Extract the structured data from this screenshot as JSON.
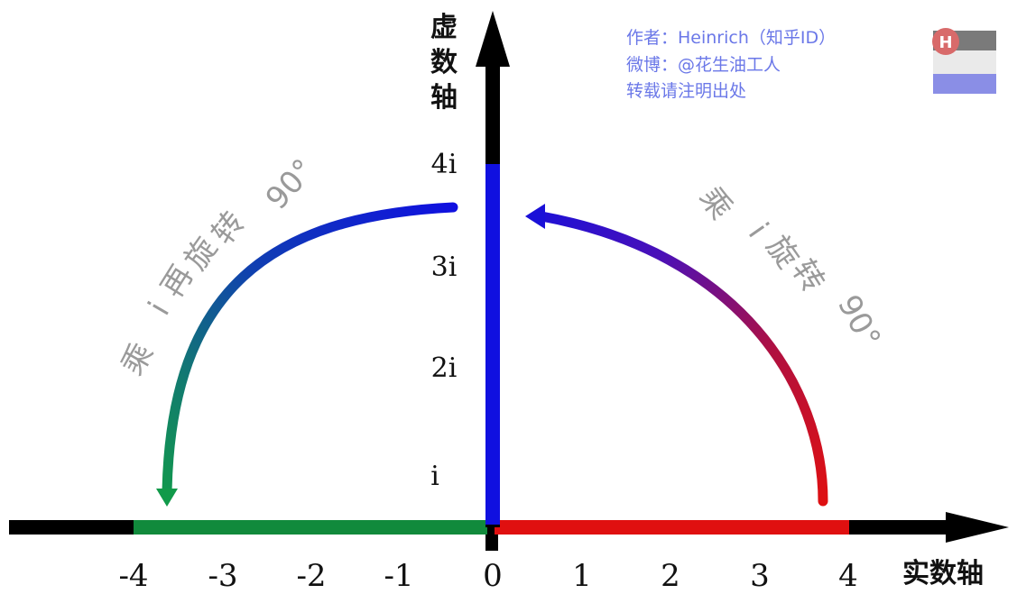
{
  "axes": {
    "real_title": "实数轴",
    "imag_title_chars": [
      "虚",
      "数",
      "轴"
    ]
  },
  "real_ticks": [
    "-4",
    "-3",
    "-2",
    "-1",
    "0",
    "1",
    "2",
    "3",
    "4"
  ],
  "imag_ticks": [
    "i",
    "2i",
    "3i",
    "4i"
  ],
  "arcs": {
    "right_label_chars": [
      "乘",
      "i",
      "旋",
      "转",
      "90°"
    ],
    "left_label_chars": [
      "乘",
      "i",
      "再",
      "旋",
      "转",
      "90°"
    ]
  },
  "credit": {
    "line1": "作者：Heinrich（知乎ID）",
    "line2": "微博：@花生油工人",
    "line3": "转载请注明出处"
  },
  "logo": {
    "letter": "H"
  },
  "colors": {
    "axis": "#000000",
    "real_positive": "#e01010",
    "real_negative": "#118a3c",
    "imag_positive": "#1010e0",
    "arc_right_start": "#e01010",
    "arc_right_end": "#1a10d8",
    "arc_left_start": "#1010e0",
    "arc_left_end": "#119a4a",
    "label_gray": "#9a9a9a",
    "credit_blue": "#6b78e8"
  }
}
